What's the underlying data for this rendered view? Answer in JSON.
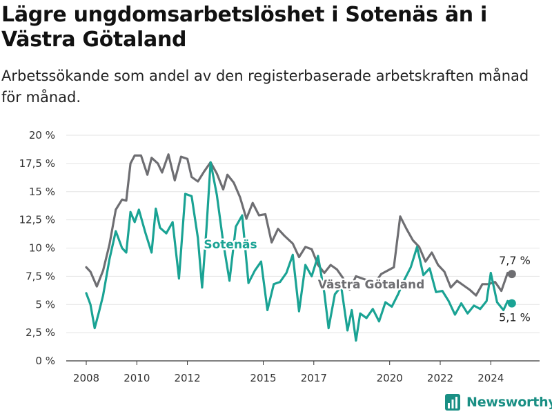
{
  "header": {
    "title": "Lägre ungdomsarbetslöshet i Sotenäs än i Västra Götaland",
    "subtitle": "Arbetssökande som andel av den registerbaserade arbetskraften månad för månad."
  },
  "brand": {
    "name": "Newsworthy",
    "icon": "bar-chart-logo-icon",
    "color": "#1a8f84"
  },
  "chart_data": {
    "type": "line",
    "ylim": [
      0,
      20
    ],
    "y_ticks": [
      0,
      2.5,
      5,
      7.5,
      10,
      12.5,
      15,
      17.5,
      20
    ],
    "y_tick_labels": [
      "0 %",
      "2,5 %",
      "5 %",
      "7,5 %",
      "10 %",
      "12,5 %",
      "15 %",
      "17,5 %",
      "20 %"
    ],
    "x_ticks": [
      2008,
      2010,
      2012,
      2015,
      2017,
      2020,
      2022,
      2024
    ],
    "x_tick_labels": [
      "2008",
      "2010",
      "2012",
      "2015",
      "2017",
      "2020",
      "2022",
      "2024"
    ],
    "grid": "horizontal",
    "series": [
      {
        "name": "Västra Götaland",
        "color": "#6e6e72",
        "end_label": "7,7 %",
        "points": [
          [
            "2008-01",
            8.3
          ],
          [
            "2008-03",
            7.9
          ],
          [
            "2008-06",
            6.6
          ],
          [
            "2008-09",
            8.0
          ],
          [
            "2008-12",
            10.3
          ],
          [
            "2009-03",
            13.4
          ],
          [
            "2009-06",
            14.3
          ],
          [
            "2009-08",
            14.2
          ],
          [
            "2009-10",
            17.5
          ],
          [
            "2009-12",
            18.2
          ],
          [
            "2010-03",
            18.2
          ],
          [
            "2010-06",
            16.5
          ],
          [
            "2010-08",
            18.0
          ],
          [
            "2010-11",
            17.5
          ],
          [
            "2011-01",
            16.7
          ],
          [
            "2011-04",
            18.3
          ],
          [
            "2011-07",
            16.0
          ],
          [
            "2011-10",
            18.1
          ],
          [
            "2012-01",
            17.9
          ],
          [
            "2012-03",
            16.3
          ],
          [
            "2012-06",
            15.9
          ],
          [
            "2012-09",
            16.8
          ],
          [
            "2012-12",
            17.6
          ],
          [
            "2013-03",
            16.6
          ],
          [
            "2013-06",
            15.2
          ],
          [
            "2013-08",
            16.5
          ],
          [
            "2013-11",
            15.8
          ],
          [
            "2014-02",
            14.5
          ],
          [
            "2014-05",
            12.6
          ],
          [
            "2014-08",
            14.0
          ],
          [
            "2014-11",
            12.9
          ],
          [
            "2015-02",
            13.0
          ],
          [
            "2015-05",
            10.5
          ],
          [
            "2015-08",
            11.7
          ],
          [
            "2015-11",
            11.1
          ],
          [
            "2016-03",
            10.4
          ],
          [
            "2016-06",
            9.2
          ],
          [
            "2016-09",
            10.1
          ],
          [
            "2016-12",
            9.9
          ],
          [
            "2017-03",
            8.5
          ],
          [
            "2017-06",
            7.8
          ],
          [
            "2017-09",
            8.5
          ],
          [
            "2017-12",
            8.1
          ],
          [
            "2018-03",
            7.3
          ],
          [
            "2018-06",
            6.3
          ],
          [
            "2018-09",
            7.5
          ],
          [
            "2018-12",
            7.3
          ],
          [
            "2019-03",
            7.1
          ],
          [
            "2019-06",
            6.9
          ],
          [
            "2019-09",
            7.7
          ],
          [
            "2019-12",
            8.0
          ],
          [
            "2020-03",
            8.3
          ],
          [
            "2020-06",
            12.8
          ],
          [
            "2020-09",
            11.7
          ],
          [
            "2020-12",
            10.7
          ],
          [
            "2021-03",
            10.1
          ],
          [
            "2021-06",
            8.8
          ],
          [
            "2021-09",
            9.6
          ],
          [
            "2021-12",
            8.5
          ],
          [
            "2022-03",
            7.9
          ],
          [
            "2022-06",
            6.5
          ],
          [
            "2022-09",
            7.1
          ],
          [
            "2022-12",
            6.7
          ],
          [
            "2023-03",
            6.3
          ],
          [
            "2023-06",
            5.8
          ],
          [
            "2023-09",
            6.8
          ],
          [
            "2023-12",
            6.8
          ],
          [
            "2024-03",
            7.0
          ],
          [
            "2024-06",
            6.2
          ],
          [
            "2024-09",
            7.8
          ],
          [
            "2024-11",
            7.7
          ]
        ]
      },
      {
        "name": "Sotenäs",
        "color": "#1aa394",
        "end_label": "5,1 %",
        "points": [
          [
            "2008-01",
            6.0
          ],
          [
            "2008-03",
            5.0
          ],
          [
            "2008-05",
            2.9
          ],
          [
            "2008-07",
            4.3
          ],
          [
            "2008-09",
            5.8
          ],
          [
            "2008-12",
            9.0
          ],
          [
            "2009-03",
            11.5
          ],
          [
            "2009-06",
            10.0
          ],
          [
            "2009-08",
            9.6
          ],
          [
            "2009-10",
            13.2
          ],
          [
            "2009-12",
            12.3
          ],
          [
            "2010-02",
            13.4
          ],
          [
            "2010-05",
            11.4
          ],
          [
            "2010-08",
            9.6
          ],
          [
            "2010-10",
            13.5
          ],
          [
            "2010-12",
            11.8
          ],
          [
            "2011-03",
            11.3
          ],
          [
            "2011-06",
            12.3
          ],
          [
            "2011-09",
            7.3
          ],
          [
            "2011-12",
            14.8
          ],
          [
            "2012-03",
            14.6
          ],
          [
            "2012-06",
            10.9
          ],
          [
            "2012-08",
            6.5
          ],
          [
            "2012-10",
            11.6
          ],
          [
            "2012-12",
            17.6
          ],
          [
            "2013-03",
            14.7
          ],
          [
            "2013-06",
            10.5
          ],
          [
            "2013-09",
            7.1
          ],
          [
            "2013-12",
            11.9
          ],
          [
            "2014-03",
            12.9
          ],
          [
            "2014-06",
            6.9
          ],
          [
            "2014-09",
            8.0
          ],
          [
            "2014-12",
            8.8
          ],
          [
            "2015-03",
            4.5
          ],
          [
            "2015-06",
            6.8
          ],
          [
            "2015-09",
            7.0
          ],
          [
            "2015-12",
            7.8
          ],
          [
            "2016-03",
            9.4
          ],
          [
            "2016-06",
            4.4
          ],
          [
            "2016-09",
            8.5
          ],
          [
            "2016-12",
            7.5
          ],
          [
            "2017-03",
            9.3
          ],
          [
            "2017-06",
            6.0
          ],
          [
            "2017-08",
            2.9
          ],
          [
            "2017-11",
            5.9
          ],
          [
            "2018-02",
            6.6
          ],
          [
            "2018-05",
            2.7
          ],
          [
            "2018-07",
            4.5
          ],
          [
            "2018-09",
            1.8
          ],
          [
            "2018-11",
            4.2
          ],
          [
            "2019-02",
            3.8
          ],
          [
            "2019-05",
            4.6
          ],
          [
            "2019-08",
            3.5
          ],
          [
            "2019-11",
            5.2
          ],
          [
            "2020-02",
            4.8
          ],
          [
            "2020-05",
            5.9
          ],
          [
            "2020-08",
            7.2
          ],
          [
            "2020-11",
            8.3
          ],
          [
            "2021-02",
            10.1
          ],
          [
            "2021-05",
            7.6
          ],
          [
            "2021-08",
            8.2
          ],
          [
            "2021-11",
            6.1
          ],
          [
            "2022-02",
            6.2
          ],
          [
            "2022-05",
            5.3
          ],
          [
            "2022-08",
            4.1
          ],
          [
            "2022-11",
            5.1
          ],
          [
            "2023-02",
            4.2
          ],
          [
            "2023-05",
            4.9
          ],
          [
            "2023-08",
            4.6
          ],
          [
            "2023-11",
            5.3
          ],
          [
            "2024-01",
            7.8
          ],
          [
            "2024-04",
            5.2
          ],
          [
            "2024-07",
            4.5
          ],
          [
            "2024-09",
            5.3
          ],
          [
            "2024-11",
            5.1
          ]
        ]
      }
    ]
  }
}
